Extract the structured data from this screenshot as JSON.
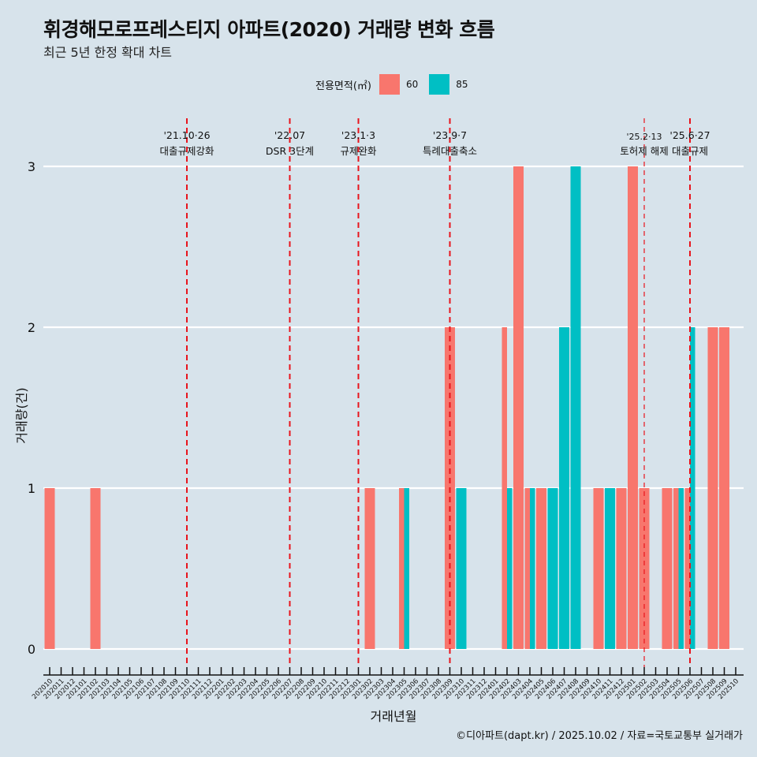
{
  "title": "휘경해모로프레스티지 아파트(2020) 거래량 변화 흐름",
  "subtitle": "최근 5년 한정 확대 차트",
  "caption": "©디아파트(dapt.kr) / 2025.10.02 / 자료=국토교통부 실거래가",
  "legend": {
    "title": "전용면적(㎡)",
    "items": [
      {
        "label": "60",
        "color": "#f8766d"
      },
      {
        "label": "85",
        "color": "#00bfc4"
      }
    ]
  },
  "chart_data": {
    "type": "bar",
    "title": "휘경해모로프레스티지 아파트(2020) 거래량 변화 흐름",
    "subtitle": "최근 5년 한정 확대 차트",
    "xlabel": "거래년월",
    "ylabel": "거래량(건)",
    "ylim": [
      0,
      3
    ],
    "yticks": [
      0,
      1,
      2,
      3
    ],
    "grid": true,
    "legend_position": "top",
    "categories": [
      "202010",
      "202011",
      "202012",
      "202101",
      "202102",
      "202103",
      "202104",
      "202105",
      "202106",
      "202107",
      "202108",
      "202109",
      "202110",
      "202111",
      "202112",
      "202201",
      "202202",
      "202203",
      "202204",
      "202205",
      "202206",
      "202207",
      "202208",
      "202209",
      "202210",
      "202211",
      "202212",
      "202301",
      "202302",
      "202303",
      "202304",
      "202305",
      "202306",
      "202307",
      "202308",
      "202309",
      "202310",
      "202311",
      "202312",
      "202401",
      "202402",
      "202403",
      "202404",
      "202405",
      "202406",
      "202407",
      "202408",
      "202409",
      "202410",
      "202411",
      "202412",
      "202501",
      "202502",
      "202503",
      "202504",
      "202505",
      "202506",
      "202507",
      "202508",
      "202509",
      "202510"
    ],
    "series": [
      {
        "name": "60",
        "color": "#f8766d",
        "values": [
          1,
          0,
          0,
          0,
          1,
          0,
          0,
          0,
          0,
          0,
          0,
          0,
          0,
          0,
          0,
          0,
          0,
          0,
          0,
          0,
          0,
          0,
          0,
          0,
          0,
          0,
          0,
          0,
          1,
          0,
          0,
          1,
          0,
          0,
          0,
          2,
          0,
          0,
          0,
          0,
          2,
          3,
          1,
          1,
          0,
          0,
          0,
          0,
          1,
          0,
          1,
          3,
          1,
          0,
          1,
          1,
          1,
          0,
          2,
          2,
          0
        ]
      },
      {
        "name": "85",
        "color": "#00bfc4",
        "values": [
          0,
          0,
          0,
          0,
          0,
          0,
          0,
          0,
          0,
          0,
          0,
          0,
          0,
          0,
          0,
          0,
          0,
          0,
          0,
          0,
          0,
          0,
          0,
          0,
          0,
          0,
          0,
          0,
          0,
          0,
          0,
          1,
          0,
          0,
          0,
          0,
          1,
          0,
          0,
          0,
          1,
          0,
          1,
          0,
          1,
          2,
          3,
          0,
          0,
          1,
          0,
          0,
          0,
          0,
          0,
          1,
          2,
          0,
          0,
          0,
          0
        ]
      }
    ],
    "annotations": [
      {
        "month": "202110",
        "date": "'21.10·26",
        "label": "대출규제강화",
        "style": "major"
      },
      {
        "month": "202207",
        "date": "'22.07",
        "label": "DSR 3단계",
        "style": "major"
      },
      {
        "month": "202301",
        "date": "'23.1·3",
        "label": "규제완화",
        "style": "major"
      },
      {
        "month": "202309",
        "date": "'23.9·7",
        "label": "특례대출축소",
        "style": "major"
      },
      {
        "month": "202502",
        "date": "'25.2·13",
        "label": "토허제 해제",
        "style": "minor"
      },
      {
        "month": "202506",
        "date": "'25.6·27",
        "label": "대출규제",
        "style": "major"
      }
    ]
  }
}
